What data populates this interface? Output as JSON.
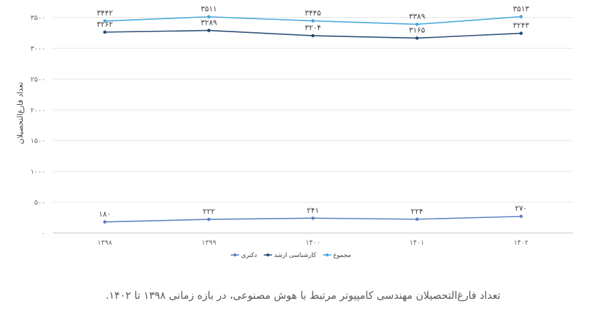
{
  "chart_data": {
    "type": "line",
    "categories": [
      "۱۳۹۸",
      "۱۳۹۹",
      "۱۴۰۰",
      "۱۴۰۱",
      "۱۴۰۲"
    ],
    "ylabel": "تعداد فارغ‌التحصیلان",
    "ylim": [
      0,
      3500
    ],
    "yticks": [
      0,
      500,
      1000,
      1500,
      2000,
      2500,
      3000,
      3500
    ],
    "ytick_labels": [
      "۰",
      "۵۰۰",
      "۱۰۰۰",
      "۱۵۰۰",
      "۲۰۰۰",
      "۲۵۰۰",
      "۳۰۰۰",
      "۳۵۰۰"
    ],
    "grid": true,
    "legend_position": "bottom",
    "series": [
      {
        "name": "دکتری",
        "color": "#5b7fbf",
        "values": [
          180,
          222,
          241,
          224,
          270
        ],
        "labels": [
          "۱۸۰",
          "۲۲۲",
          "۲۴۱",
          "۲۲۴",
          "۲۷۰"
        ],
        "label_position": "above"
      },
      {
        "name": "کارشناسی ارشد",
        "color": "#264a73",
        "values": [
          3262,
          3289,
          3204,
          3165,
          3243
        ],
        "labels": [
          "۳۲۶۲",
          "۳۲۸۹",
          "۳۲۰۴",
          "۳۱۶۵",
          "۳۲۴۳"
        ],
        "label_position": "above"
      },
      {
        "name": "مجموع",
        "color": "#45a6dc",
        "values": [
          3442,
          3511,
          3445,
          3389,
          3513
        ],
        "labels": [
          "۳۴۴۲",
          "۳۵۱۱",
          "۳۴۴۵",
          "۳۳۸۹",
          "۳۵۱۳"
        ],
        "label_position": "above"
      }
    ]
  },
  "caption": "تعداد فارغ‌التحصیلان مهندسی کامپیوتر مرتبط با هوش مصنوعی، در بازه زمانی ۱۳۹۸ تا ۱۴۰۲."
}
